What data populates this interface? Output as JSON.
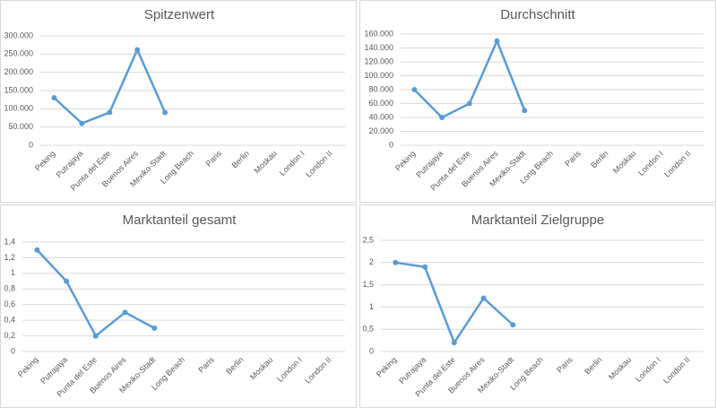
{
  "chart_data": [
    {
      "type": "line",
      "title": "Spitzenwert",
      "categories": [
        "Peking",
        "Putrajaya",
        "Punta del Este",
        "Buenos Aires",
        "Mexiko-Stadt",
        "Long Beach",
        "Paris",
        "Berlin",
        "Moskau",
        "London I",
        "London II"
      ],
      "values": [
        130000,
        60000,
        90000,
        262000,
        90000,
        null,
        null,
        null,
        null,
        null,
        null
      ],
      "color": "#5b9bd5",
      "ylim": [
        0,
        300000
      ],
      "yticks": [
        0,
        {
          "value": 50000,
          "label": "50.000"
        },
        {
          "value": 100000,
          "label": "100.000"
        },
        {
          "value": 150000,
          "label": "150.000"
        },
        {
          "value": 200000,
          "label": "200.000"
        },
        {
          "value": 250000,
          "label": "250.000"
        },
        {
          "value": 300000,
          "label": "300.000"
        }
      ],
      "grid": true
    },
    {
      "type": "line",
      "title": "Durchschnitt",
      "categories": [
        "Peking",
        "Putrajaya",
        "Punta del Este",
        "Buenos Aires",
        "Mexiko-Stadt",
        "Long Beach",
        "Paris",
        "Berlin",
        "Moskau",
        "London I",
        "London II"
      ],
      "values": [
        80000,
        40000,
        60000,
        150000,
        50000,
        null,
        null,
        null,
        null,
        null,
        null
      ],
      "color": "#5b9bd5",
      "ylim": [
        0,
        160000
      ],
      "yticks": [
        0,
        {
          "value": 20000,
          "label": "20.000"
        },
        {
          "value": 40000,
          "label": "40.000"
        },
        {
          "value": 60000,
          "label": "60.000"
        },
        {
          "value": 80000,
          "label": "80.000"
        },
        {
          "value": 100000,
          "label": "100.000"
        },
        {
          "value": 120000,
          "label": "120.000"
        },
        {
          "value": 140000,
          "label": "140.000"
        },
        {
          "value": 160000,
          "label": "160.000"
        }
      ],
      "grid": true
    },
    {
      "type": "line",
      "title": "Marktanteil gesamt",
      "categories": [
        "Peking",
        "Putrajaya",
        "Punta del Este",
        "Buenos Aires",
        "Mexiko-Stadt",
        "Long Beach",
        "Paris",
        "Berlin",
        "Moskau",
        "London I",
        "London II"
      ],
      "values": [
        1.3,
        0.9,
        0.2,
        0.5,
        0.3,
        null,
        null,
        null,
        null,
        null,
        null
      ],
      "color": "#5b9bd5",
      "ylim": [
        0,
        1.4
      ],
      "yticks": [
        0,
        {
          "value": 0.2,
          "label": "0,2"
        },
        {
          "value": 0.4,
          "label": "0,4"
        },
        {
          "value": 0.6,
          "label": "0,6"
        },
        {
          "value": 0.8,
          "label": "0,8"
        },
        1,
        {
          "value": 1.2,
          "label": "1,2"
        },
        {
          "value": 1.4,
          "label": "1,4"
        }
      ],
      "grid": true
    },
    {
      "type": "line",
      "title": "Marktanteil Zielgruppe",
      "categories": [
        "Peking",
        "Putrajaya",
        "Punta del Este",
        "Buenos Aires",
        "Mexiko-Stadt",
        "Long Beach",
        "Paris",
        "Berlin",
        "Moskau",
        "London I",
        "London II"
      ],
      "values": [
        2,
        1.9,
        0.2,
        1.2,
        0.6,
        null,
        null,
        null,
        null,
        null,
        null
      ],
      "color": "#5b9bd5",
      "ylim": [
        0,
        2.5
      ],
      "yticks": [
        0,
        {
          "value": 0.5,
          "label": "0,5"
        },
        1,
        {
          "value": 1.5,
          "label": "1,5"
        },
        2,
        {
          "value": 2.5,
          "label": "2,5"
        }
      ],
      "grid": true
    }
  ]
}
